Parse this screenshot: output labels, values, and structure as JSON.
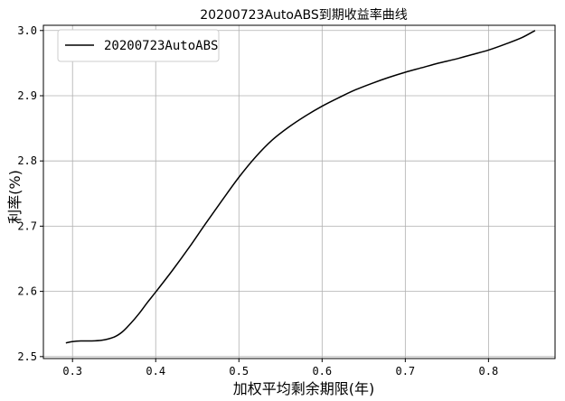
{
  "chart_data": {
    "type": "line",
    "title": "20200723AutoABS到期收益率曲线",
    "xlabel": "加权平均剩余期限(年)",
    "ylabel": "利率(%)",
    "xlim": [
      0.265,
      0.88
    ],
    "ylim": [
      2.497,
      3.008
    ],
    "x_ticks": [
      0.3,
      0.4,
      0.5,
      0.6,
      0.7,
      0.8
    ],
    "y_ticks": [
      2.5,
      2.6,
      2.7,
      2.8,
      2.9,
      3.0
    ],
    "x_tick_labels": [
      "0.3",
      "0.4",
      "0.5",
      "0.6",
      "0.7",
      "0.8"
    ],
    "y_tick_labels": [
      "2.5",
      "2.6",
      "2.7",
      "2.8",
      "2.9",
      "3.0"
    ],
    "grid": true,
    "legend_position": "top-left",
    "series": [
      {
        "name": "20200723AutoABS",
        "color": "#000000",
        "x": [
          0.292,
          0.3,
          0.31,
          0.32,
          0.335,
          0.35,
          0.36,
          0.37,
          0.38,
          0.39,
          0.4,
          0.42,
          0.44,
          0.46,
          0.48,
          0.5,
          0.52,
          0.54,
          0.56,
          0.58,
          0.6,
          0.62,
          0.64,
          0.66,
          0.68,
          0.7,
          0.72,
          0.74,
          0.76,
          0.78,
          0.8,
          0.82,
          0.84,
          0.856
        ],
        "y": [
          2.521,
          2.523,
          2.524,
          2.524,
          2.525,
          2.53,
          2.538,
          2.551,
          2.566,
          2.583,
          2.599,
          2.632,
          2.667,
          2.704,
          2.74,
          2.775,
          2.806,
          2.832,
          2.852,
          2.869,
          2.884,
          2.897,
          2.909,
          2.919,
          2.928,
          2.936,
          2.943,
          2.95,
          2.956,
          2.963,
          2.97,
          2.979,
          2.989,
          3.0
        ]
      }
    ]
  }
}
